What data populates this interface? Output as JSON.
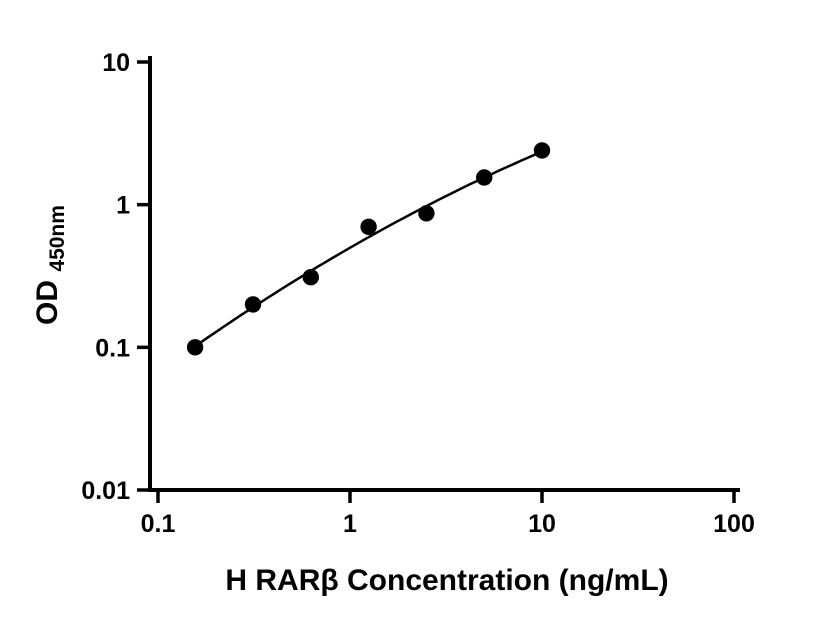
{
  "chart_data": {
    "type": "scatter",
    "title": "",
    "xlabel": "H RARβ Concentration (ng/mL)",
    "ylabel_main": "OD",
    "ylabel_sub": "450nm",
    "xscale": "log",
    "yscale": "log",
    "xlim": [
      0.1,
      100
    ],
    "ylim": [
      0.01,
      10
    ],
    "grid": false,
    "legend": false,
    "x_ticks": {
      "values": [
        0.1,
        1,
        10,
        100
      ],
      "labels": [
        "0.1",
        "1",
        "10",
        "100"
      ]
    },
    "y_ticks": {
      "values": [
        0.01,
        0.1,
        1,
        10
      ],
      "labels": [
        "0.01",
        "0.1",
        "1",
        "10"
      ]
    },
    "series": [
      {
        "marker": "filled-circle",
        "fit_curve": true,
        "x": [
          0.156,
          0.3125,
          0.625,
          1.25,
          2.5,
          5,
          10
        ],
        "y": [
          0.1,
          0.2,
          0.31,
          0.7,
          0.87,
          1.55,
          2.4
        ]
      }
    ],
    "colors": {
      "axis": "#000000",
      "marker": "#000000",
      "curve": "#000000",
      "background": "#ffffff"
    }
  }
}
